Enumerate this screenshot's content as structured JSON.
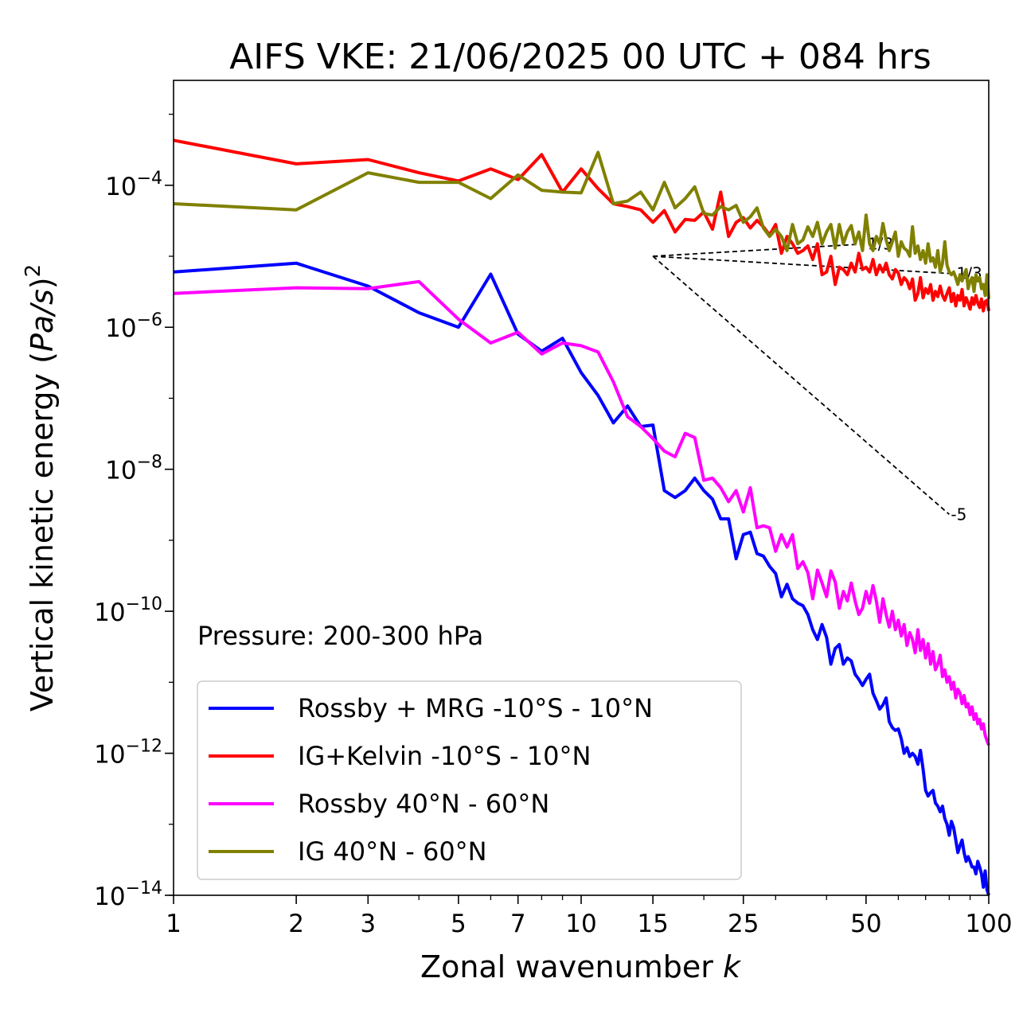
{
  "chart_data": {
    "type": "line",
    "title": "AIFS VKE: 21/06/2025 00 UTC + 084 hrs",
    "xlabel": "Zonal wavenumber",
    "xlabel_var": "k",
    "ylabel_prefix": "Vertical kinetic energy (",
    "ylabel_var": "Pa/s",
    "ylabel_suffix": ")",
    "ylabel_exp": "2",
    "xscale": "log",
    "yscale": "log",
    "xlim": [
      1,
      100
    ],
    "ylim": [
      1e-14,
      0.003
    ],
    "xticks": [
      {
        "value": 1,
        "label": "1"
      },
      {
        "value": 2,
        "label": "2"
      },
      {
        "value": 3,
        "label": "3"
      },
      {
        "value": 5,
        "label": "5"
      },
      {
        "value": 7,
        "label": "7"
      },
      {
        "value": 10,
        "label": "10"
      },
      {
        "value": 15,
        "label": "15"
      },
      {
        "value": 25,
        "label": "25"
      },
      {
        "value": 50,
        "label": "50"
      },
      {
        "value": 100,
        "label": "100"
      }
    ],
    "yticks": [
      {
        "exp": -4,
        "base": "10",
        "sup": "−4"
      },
      {
        "exp": -6,
        "base": "10",
        "sup": "−6"
      },
      {
        "exp": -8,
        "base": "10",
        "sup": "−8"
      },
      {
        "exp": -10,
        "base": "10",
        "sup": "−10"
      },
      {
        "exp": -12,
        "base": "10",
        "sup": "−12"
      },
      {
        "exp": -14,
        "base": "10",
        "sup": "−14"
      }
    ],
    "annotation": "Pressure: 200-300 hPa",
    "legend_position": "lower-left",
    "series": [
      {
        "name": "Rossby + MRG -10°S - 10°N",
        "color": "#0000ff",
        "x": [
          1,
          2,
          3,
          4,
          5,
          6,
          7,
          8,
          9,
          10,
          11,
          12,
          13,
          14,
          15,
          16,
          17,
          18,
          19,
          20,
          21,
          22,
          23,
          24,
          25,
          26,
          27,
          28,
          29,
          30,
          31,
          32,
          33,
          34,
          35,
          36,
          37,
          38,
          39,
          40,
          41,
          42,
          43,
          44,
          45,
          46,
          47,
          48,
          49,
          50,
          51,
          52,
          53,
          54,
          55,
          56,
          57,
          58,
          59,
          60,
          61,
          62,
          63,
          64,
          65,
          66,
          67,
          68,
          69,
          70,
          71,
          72,
          73,
          74,
          75,
          76,
          77,
          78,
          79,
          80,
          81,
          82,
          83,
          84,
          85,
          86,
          87,
          88,
          89,
          90,
          91,
          92,
          93,
          94,
          95,
          96,
          97,
          98,
          99,
          100
        ],
        "y": [
          6e-06,
          8e-06,
          3.8e-06,
          1.6e-06,
          1e-06,
          5.6e-06,
          8e-07,
          4.6e-07,
          7e-07,
          2.3e-07,
          1.1e-07,
          4.5e-08,
          7.8e-08,
          4e-08,
          4.2e-08,
          5e-09,
          4e-09,
          5e-09,
          7.5e-09,
          5e-09,
          3.8e-09,
          2e-09,
          2e-09,
          5.5e-10,
          1.2e-09,
          1.3e-09,
          6.5e-10,
          6e-10,
          4.3e-10,
          3.4e-10,
          1.6e-10,
          2.4e-10,
          1.5e-10,
          1.3e-10,
          1.2e-10,
          9e-11,
          5.5e-11,
          4e-11,
          6.5e-11,
          4.3e-11,
          1.8e-11,
          3e-11,
          3.4e-11,
          1.8e-11,
          2.2e-11,
          2e-11,
          1.3e-11,
          1.1e-11,
          9e-12,
          1.1e-11,
          1.3e-11,
          7e-12,
          5.5e-12,
          4.2e-12,
          4.8e-12,
          6e-12,
          2.8e-12,
          2.3e-12,
          2.1e-12,
          2.2e-12,
          1.6e-12,
          1e-12,
          1.2e-12,
          9e-13,
          1e-12,
          9e-13,
          7e-13,
          1.1e-12,
          6e-13,
          3e-13,
          2.5e-13,
          2.8e-13,
          3e-13,
          2e-13,
          1.8e-13,
          1.5e-13,
          1.8e-13,
          1.2e-13,
          1e-13,
          7e-14,
          1.1e-13,
          9e-14,
          6e-14,
          4e-14,
          5e-14,
          6e-14,
          4e-14,
          3e-14,
          3.5e-14,
          3e-14,
          2.5e-14,
          2.5e-14,
          2e-14,
          3e-14,
          2.5e-14,
          2e-14,
          1.3e-14,
          2.2e-14,
          1.2e-14,
          8e-15
        ]
      },
      {
        "name": "IG+Kelvin -10°S - 10°N",
        "color": "#ff0000",
        "x": [
          1,
          2,
          3,
          4,
          5,
          6,
          7,
          8,
          9,
          10,
          11,
          12,
          13,
          14,
          15,
          16,
          17,
          18,
          19,
          20,
          21,
          22,
          23,
          24,
          25,
          26,
          27,
          28,
          29,
          30,
          31,
          32,
          33,
          34,
          35,
          36,
          37,
          38,
          39,
          40,
          41,
          42,
          43,
          44,
          45,
          46,
          47,
          48,
          49,
          50,
          51,
          52,
          53,
          54,
          55,
          56,
          57,
          58,
          59,
          60,
          61,
          62,
          63,
          64,
          65,
          66,
          67,
          68,
          69,
          70,
          71,
          72,
          73,
          74,
          75,
          76,
          77,
          78,
          79,
          80,
          81,
          82,
          83,
          84,
          85,
          86,
          87,
          88,
          89,
          90,
          91,
          92,
          93,
          94,
          95,
          96,
          97,
          98,
          99,
          100
        ],
        "y": [
          0.00043,
          0.0002,
          0.00023,
          0.00015,
          0.000115,
          0.00017,
          0.00012,
          0.00027,
          8e-05,
          0.00017,
          9e-05,
          5.5e-05,
          5e-05,
          4.5e-05,
          3e-05,
          4.4e-05,
          2.2e-05,
          3.3e-05,
          3.2e-05,
          4.2e-05,
          2.4e-05,
          8e-05,
          1.9e-05,
          3e-05,
          3.5e-05,
          2.5e-05,
          3.2e-05,
          2.6e-05,
          2e-05,
          2.8e-05,
          1.1e-05,
          1.9e-05,
          1.5e-05,
          1.1e-05,
          1.2e-05,
          1.4e-05,
          9e-06,
          1.5e-05,
          5.5e-06,
          6e-06,
          1e-05,
          4e-06,
          7e-06,
          6.5e-06,
          5.5e-06,
          8e-06,
          6e-06,
          1.1e-05,
          6.5e-06,
          7e-06,
          6e-06,
          9e-06,
          5.5e-06,
          7.5e-06,
          6e-06,
          8e-06,
          5.5e-06,
          4.8e-06,
          6.5e-06,
          5.8e-06,
          4e-06,
          5e-06,
          4.5e-06,
          3.5e-06,
          4.8e-06,
          2.4e-06,
          3e-06,
          5e-06,
          2.6e-06,
          3.5e-06,
          3e-06,
          4e-06,
          2.4e-06,
          3.2e-06,
          2.7e-06,
          3.8e-06,
          2.8e-06,
          2.4e-06,
          3e-06,
          3.6e-06,
          2.3e-06,
          3e-06,
          2e-06,
          2.8e-06,
          2.4e-06,
          3.4e-06,
          2e-06,
          2.6e-06,
          2.2e-06,
          1.8e-06,
          2.6e-06,
          2.1e-06,
          2.8e-06,
          2.2e-06,
          1.9e-06,
          2.5e-06,
          1.7e-06,
          2.3e-06,
          2.4e-06,
          1.7e-06
        ]
      },
      {
        "name": "Rossby 40°N - 60°N",
        "color": "#ff00ff",
        "x": [
          1,
          2,
          3,
          4,
          5,
          6,
          7,
          8,
          9,
          10,
          11,
          12,
          13,
          14,
          15,
          16,
          17,
          18,
          19,
          20,
          21,
          22,
          23,
          24,
          25,
          26,
          27,
          28,
          29,
          30,
          31,
          32,
          33,
          34,
          35,
          36,
          37,
          38,
          39,
          40,
          41,
          42,
          43,
          44,
          45,
          46,
          47,
          48,
          49,
          50,
          51,
          52,
          53,
          54,
          55,
          56,
          57,
          58,
          59,
          60,
          61,
          62,
          63,
          64,
          65,
          66,
          67,
          68,
          69,
          70,
          71,
          72,
          73,
          74,
          75,
          76,
          77,
          78,
          79,
          80,
          81,
          82,
          83,
          84,
          85,
          86,
          87,
          88,
          89,
          90,
          91,
          92,
          93,
          94,
          95,
          96,
          97,
          98,
          99,
          100
        ],
        "y": [
          3e-06,
          3.6e-06,
          3.5e-06,
          4.4e-06,
          1.3e-06,
          6e-07,
          8.5e-07,
          4.2e-07,
          6e-07,
          5.5e-07,
          4.5e-07,
          1.7e-07,
          5.5e-08,
          4e-08,
          2.7e-08,
          1.8e-08,
          1.5e-08,
          3.2e-08,
          2.8e-08,
          7e-09,
          7.5e-09,
          5.5e-09,
          3.5e-09,
          5e-09,
          2.5e-09,
          5.5e-09,
          1.5e-09,
          1.6e-09,
          1.5e-09,
          7e-10,
          1.2e-09,
          8e-10,
          1.2e-09,
          4e-10,
          5e-10,
          3.5e-10,
          1.5e-10,
          3.8e-10,
          2.5e-10,
          1.6e-10,
          3.7e-10,
          2.6e-10,
          1.1e-10,
          1.9e-10,
          1.4e-10,
          2.5e-10,
          1.4e-10,
          9e-11,
          1.1e-10,
          1.9e-10,
          1.3e-10,
          2.3e-10,
          1.4e-10,
          7e-11,
          1.5e-10,
          9e-11,
          6e-11,
          1e-10,
          5.5e-11,
          7.5e-11,
          4.5e-11,
          6.5e-11,
          3.3e-11,
          5e-11,
          4e-11,
          2.6e-11,
          5.5e-11,
          2.8e-11,
          4e-11,
          2.2e-11,
          3.5e-11,
          1.8e-11,
          2.7e-11,
          1.5e-11,
          1.8e-11,
          2.4e-11,
          1.2e-11,
          1.5e-11,
          1e-11,
          1.2e-11,
          8e-12,
          1e-11,
          6e-12,
          8e-12,
          7e-12,
          5e-12,
          6.5e-12,
          4.5e-12,
          5e-12,
          3.5e-12,
          4.5e-12,
          3e-12,
          3.6e-12,
          2.6e-12,
          3e-12,
          2.2e-12,
          2.6e-12,
          1.8e-12,
          1.5e-12,
          1.3e-12
        ]
      },
      {
        "name": "IG 40°N - 60°N",
        "color": "#808000",
        "x": [
          1,
          2,
          3,
          4,
          5,
          6,
          7,
          8,
          9,
          10,
          11,
          12,
          13,
          14,
          15,
          16,
          17,
          18,
          19,
          20,
          21,
          22,
          23,
          24,
          25,
          26,
          27,
          28,
          29,
          30,
          31,
          32,
          33,
          34,
          35,
          36,
          37,
          38,
          39,
          40,
          41,
          42,
          43,
          44,
          45,
          46,
          47,
          48,
          49,
          50,
          51,
          52,
          53,
          54,
          55,
          56,
          57,
          58,
          59,
          60,
          61,
          62,
          63,
          64,
          65,
          66,
          67,
          68,
          69,
          70,
          71,
          72,
          73,
          74,
          75,
          76,
          77,
          78,
          79,
          80,
          81,
          82,
          83,
          84,
          85,
          86,
          87,
          88,
          89,
          90,
          91,
          92,
          93,
          94,
          95,
          96,
          97,
          98,
          99,
          100
        ],
        "y": [
          5.5e-05,
          4.5e-05,
          0.00015,
          0.00011,
          0.00011,
          6.5e-05,
          0.00014,
          8.5e-05,
          8e-05,
          7.8e-05,
          0.00029,
          5.5e-05,
          6e-05,
          8e-05,
          4.5e-05,
          0.00011,
          4.8e-05,
          6.5e-05,
          9.5e-05,
          4e-05,
          3.8e-05,
          5e-05,
          4.5e-05,
          5.2e-05,
          3e-05,
          3.6e-05,
          4.8e-05,
          2.5e-05,
          1.9e-05,
          2.4e-05,
          1.9e-05,
          1.2e-05,
          2.8e-05,
          1.5e-05,
          1.7e-05,
          2.6e-05,
          1.9e-05,
          3e-05,
          1.5e-05,
          2.2e-05,
          2.8e-05,
          1.3e-05,
          2.8e-05,
          1.5e-05,
          2.2e-05,
          2.7e-05,
          1.5e-05,
          2.2e-05,
          1.2e-05,
          3.8e-05,
          1.5e-05,
          1.2e-05,
          1.9e-05,
          1.5e-05,
          2.9e-05,
          1.7e-05,
          1.2e-05,
          1.6e-05,
          2.2e-05,
          1e-05,
          1.6e-05,
          1.3e-05,
          1.2e-05,
          1e-05,
          2.6e-05,
          1.1e-05,
          1.4e-05,
          9e-06,
          1.2e-05,
          8e-06,
          1.5e-05,
          8.5e-06,
          9.5e-06,
          7e-06,
          1.2e-05,
          6e-06,
          8e-06,
          1.6e-05,
          7.5e-06,
          6e-06,
          5.5e-06,
          6e-06,
          5e-06,
          4e-06,
          5.5e-06,
          4.5e-06,
          5.5e-06,
          6.5e-06,
          3.5e-06,
          4.5e-06,
          5e-06,
          3.2e-06,
          5.5e-06,
          4.5e-06,
          5e-06,
          3.5e-06,
          4e-06,
          2.8e-06,
          5.5e-06,
          2.5e-06
        ]
      }
    ],
    "reference_slopes": [
      {
        "label": "1/3",
        "slope": 0.3333,
        "x0": 15,
        "y0": 1e-05,
        "x1": 50
      },
      {
        "label": "-1/3",
        "slope": -0.3333,
        "x0": 15,
        "y0": 1e-05,
        "x1": 80
      },
      {
        "label": "-5",
        "slope": -5,
        "x0": 15,
        "y0": 1e-05,
        "x1": 80
      }
    ]
  }
}
